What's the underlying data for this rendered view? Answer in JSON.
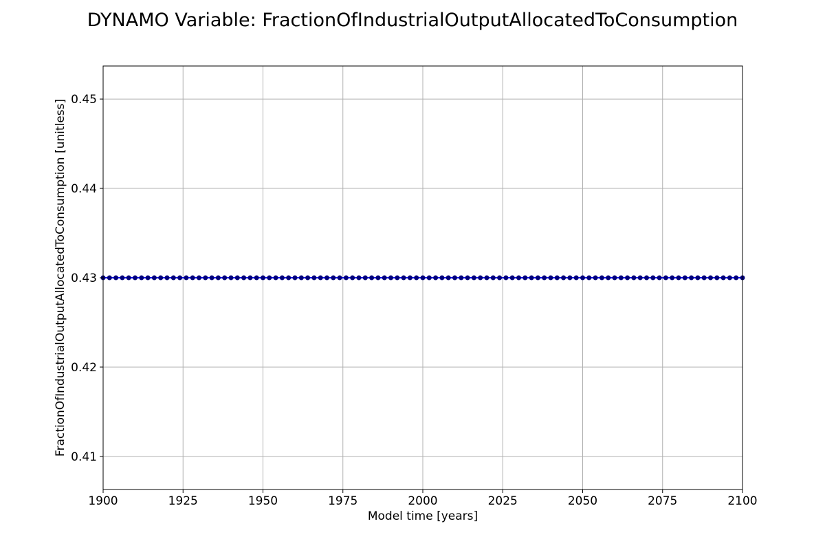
{
  "chart_data": {
    "type": "line",
    "title": "DYNAMO Variable: FractionOfIndustrialOutputAllocatedToConsumption",
    "xlabel": "Model time [years]",
    "ylabel": "FractionOfIndustrialOutputAllocatedToConsumption [unitless]",
    "xlim": [
      1900,
      2100
    ],
    "ylim": [
      0.4063,
      0.4537
    ],
    "x_ticks": [
      1900,
      1925,
      1950,
      1975,
      2000,
      2025,
      2050,
      2075,
      2100
    ],
    "y_ticks": [
      0.41,
      0.42,
      0.43,
      0.44,
      0.45
    ],
    "grid": true,
    "legend": "none",
    "series": [
      {
        "color": "#0000ff",
        "marker_color": "#00007a",
        "marker": "circle",
        "x_start": 1900,
        "x_end": 2100,
        "x_step": 2,
        "constant_y": 0.43
      }
    ]
  }
}
